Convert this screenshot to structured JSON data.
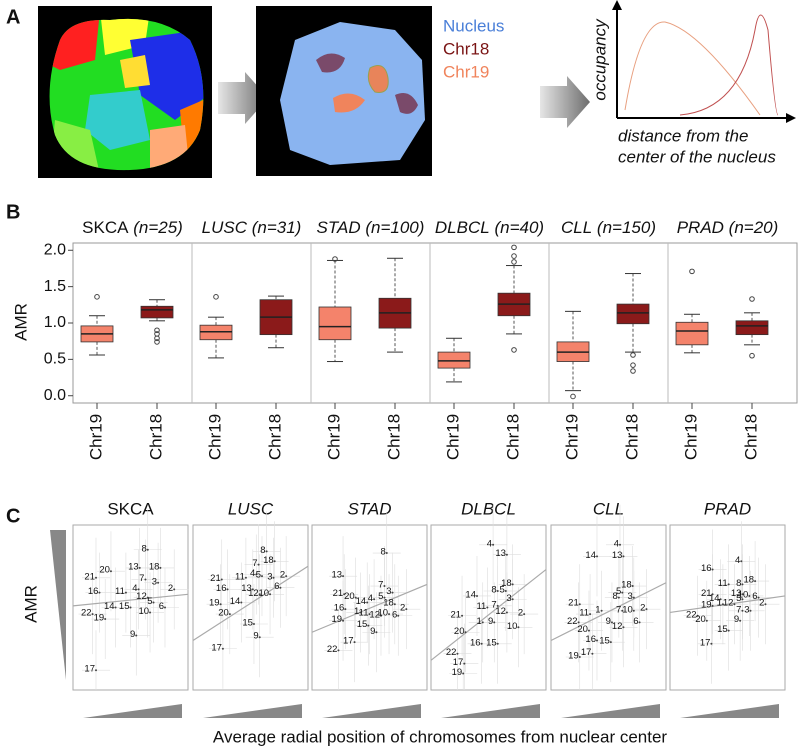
{
  "panel_a": {
    "letter": "A",
    "legend": [
      {
        "text": "Nucleus",
        "color": "#4a7fd8"
      },
      {
        "text": "Chr18",
        "color": "#7a1414"
      },
      {
        "text": "Chr19",
        "color": "#f0845c"
      }
    ],
    "y_label": "occupancy",
    "x_label": [
      "distance from the",
      "center of the nucleus"
    ]
  },
  "chart_data": [
    {
      "type": "boxplot",
      "letter": "B",
      "y_label": "AMR",
      "ylim": [
        -0.1,
        2.1
      ],
      "yticks": [
        {
          "value": 0,
          "label": "0.0"
        },
        0.5,
        {
          "value": 1,
          "label": "1.0"
        },
        1.5,
        {
          "value": 2,
          "label": "2.0"
        }
      ],
      "categories": [
        "Chr19",
        "Chr18"
      ],
      "colors": [
        "#f4836b",
        "#8b1a1a"
      ],
      "groups": [
        {
          "name": "SKCA",
          "n_label": "(n=25)",
          "boxes": [
            {
              "whislo": 0.56,
              "q1": 0.74,
              "med": 0.85,
              "q3": 0.96,
              "whishi": 1.1,
              "fliers": [
                1.36
              ]
            },
            {
              "whislo": 1.03,
              "q1": 1.07,
              "med": 1.18,
              "q3": 1.23,
              "whishi": 1.32,
              "fliers": [
                0.9,
                0.85,
                0.79,
                0.74
              ]
            }
          ]
        },
        {
          "name": "LUSC",
          "n_label": "(n=31)",
          "boxes": [
            {
              "whislo": 0.52,
              "q1": 0.77,
              "med": 0.88,
              "q3": 0.97,
              "whishi": 1.08,
              "fliers": [
                1.36
              ]
            },
            {
              "whislo": 0.66,
              "q1": 0.84,
              "med": 1.08,
              "q3": 1.32,
              "whishi": 1.37,
              "fliers": []
            }
          ]
        },
        {
          "name": "STAD",
          "n_label": "(n=100)",
          "boxes": [
            {
              "whislo": 0.47,
              "q1": 0.77,
              "med": 0.95,
              "q3": 1.22,
              "whishi": 1.86,
              "fliers": [
                1.88
              ]
            },
            {
              "whislo": 0.6,
              "q1": 0.93,
              "med": 1.14,
              "q3": 1.34,
              "whishi": 1.89,
              "fliers": []
            }
          ]
        },
        {
          "name": "DLBCL",
          "n_label": "(n=40)",
          "boxes": [
            {
              "whislo": 0.19,
              "q1": 0.38,
              "med": 0.48,
              "q3": 0.6,
              "whishi": 0.79,
              "fliers": []
            },
            {
              "whislo": 0.85,
              "q1": 1.1,
              "med": 1.26,
              "q3": 1.41,
              "whishi": 1.79,
              "fliers": [
                2.04,
                1.92,
                1.84,
                0.63
              ]
            }
          ]
        },
        {
          "name": "CLL",
          "n_label": "(n=150)",
          "boxes": [
            {
              "whislo": 0.07,
              "q1": 0.47,
              "med": 0.6,
              "q3": 0.74,
              "whishi": 1.16,
              "fliers": [
                -0.01
              ]
            },
            {
              "whislo": 0.6,
              "q1": 0.99,
              "med": 1.14,
              "q3": 1.26,
              "whishi": 1.68,
              "fliers": [
                0.56,
                0.42,
                0.34
              ]
            }
          ]
        },
        {
          "name": "PRAD",
          "n_label": "(n=20)",
          "boxes": [
            {
              "whislo": 0.59,
              "q1": 0.7,
              "med": 0.89,
              "q3": 1.01,
              "whishi": 1.12,
              "fliers": [
                1.71
              ]
            },
            {
              "whislo": 0.7,
              "q1": 0.84,
              "med": 0.96,
              "q3": 1.03,
              "whishi": 1.14,
              "fliers": [
                1.33,
                0.55
              ]
            }
          ]
        }
      ]
    },
    {
      "type": "scatter",
      "letter": "C",
      "y_label": "AMR",
      "x_label": "Average radial position of chromosomes from nuclear center",
      "xlim": [
        0,
        100
      ],
      "ylim": [
        0,
        100
      ],
      "panels": [
        {
          "name": "SKCA",
          "labels": [
            "8",
            "18",
            "21",
            "20",
            "13",
            "7",
            "3",
            "16",
            "11",
            "4",
            "2",
            "12",
            "14",
            "15",
            "5",
            "22",
            "19",
            "10",
            "6",
            "9",
            "17"
          ],
          "x": [
            65,
            76,
            20,
            33,
            58,
            63,
            74,
            23,
            46,
            57,
            88,
            65,
            37,
            50,
            70,
            17,
            28,
            67,
            80,
            55,
            20
          ],
          "y": [
            85,
            74,
            68,
            72,
            74,
            67,
            65,
            59,
            59,
            61,
            61,
            56,
            50,
            50,
            53,
            46,
            43,
            47,
            50,
            33,
            12
          ],
          "trend": [
            51,
            58
          ]
        },
        {
          "name": "LUSC",
          "labels": [
            "8",
            "18",
            "7",
            "21",
            "11",
            "4",
            "5",
            "3",
            "2",
            "6",
            "16",
            "13",
            "12",
            "10",
            "19",
            "14",
            "20",
            "15",
            "9",
            "17"
          ],
          "x": [
            64,
            71,
            57,
            25,
            46,
            55,
            60,
            70,
            81,
            76,
            30,
            52,
            58,
            67,
            24,
            42,
            32,
            53,
            58,
            26
          ],
          "y": [
            84,
            78,
            76,
            67,
            68,
            70,
            69,
            68,
            69,
            62,
            61,
            61,
            58,
            58,
            52,
            53,
            46,
            40,
            32,
            25
          ],
          "trend": [
            30,
            75
          ]
        },
        {
          "name": "STAD",
          "labels": [
            "8",
            "13",
            "7",
            "3",
            "21",
            "20",
            "14",
            "4",
            "5",
            "18",
            "2",
            "16",
            "1",
            "11",
            "12",
            "10",
            "6",
            "19",
            "15",
            "9",
            "17",
            "22"
          ],
          "x": [
            65,
            27,
            63,
            70,
            28,
            38,
            48,
            54,
            63,
            72,
            82,
            29,
            42,
            50,
            60,
            67,
            75,
            27,
            49,
            56,
            37,
            23
          ],
          "y": [
            83,
            69,
            63,
            59,
            58,
            56,
            53,
            55,
            56,
            52,
            49,
            49,
            47,
            46,
            45,
            46,
            45,
            42,
            39,
            35,
            29,
            24
          ],
          "trend": [
            35,
            64
          ]
        },
        {
          "name": "DLBCL",
          "labels": [
            "4",
            "13",
            "18",
            "8",
            "5",
            "14",
            "3",
            "11",
            "7",
            "2",
            "21",
            "12",
            "1",
            "9",
            "10",
            "20",
            "16",
            "15",
            "22",
            "17",
            "19"
          ],
          "x": [
            54,
            66,
            71,
            58,
            65,
            40,
            71,
            49,
            58,
            81,
            27,
            66,
            45,
            55,
            76,
            30,
            44,
            58,
            23,
            29,
            28
          ],
          "y": [
            88,
            82,
            64,
            60,
            60,
            57,
            55,
            50,
            51,
            46,
            45,
            47,
            41,
            41,
            38,
            35,
            28,
            28,
            22,
            16,
            10
          ],
          "trend": [
            18,
            73
          ]
        },
        {
          "name": "CLL",
          "labels": [
            "4",
            "14",
            "13",
            "18",
            "5",
            "8",
            "3",
            "21",
            "1",
            "7",
            "10",
            "2",
            "11",
            "22",
            "9",
            "6",
            "20",
            "12",
            "16",
            "15",
            "17",
            "19"
          ],
          "x": [
            60,
            40,
            63,
            71,
            62,
            59,
            72,
            25,
            44,
            62,
            72,
            83,
            34,
            24,
            53,
            77,
            33,
            63,
            40,
            52,
            36,
            25
          ],
          "y": [
            88,
            81,
            81,
            63,
            59,
            56,
            56,
            52,
            48,
            48,
            48,
            49,
            46,
            41,
            41,
            41,
            36,
            38,
            30,
            29,
            22,
            20
          ],
          "trend": [
            30,
            65
          ]
        },
        {
          "name": "PRAD",
          "labels": [
            "4",
            "16",
            "11",
            "8",
            "18",
            "21",
            "13",
            "14",
            "5",
            "10",
            "6",
            "19",
            "1",
            "12",
            "7",
            "3",
            "2",
            "22",
            "20",
            "9",
            "15",
            "17"
          ],
          "x": [
            62,
            37,
            51,
            63,
            74,
            37,
            63,
            44,
            63,
            69,
            77,
            37,
            46,
            56,
            63,
            70,
            83,
            24,
            32,
            61,
            51,
            36
          ],
          "y": [
            78,
            73,
            64,
            64,
            66,
            58,
            58,
            55,
            55,
            57,
            56,
            51,
            52,
            52,
            48,
            48,
            52,
            45,
            42,
            42,
            36,
            28
          ],
          "trend": [
            47,
            57
          ]
        }
      ]
    }
  ]
}
